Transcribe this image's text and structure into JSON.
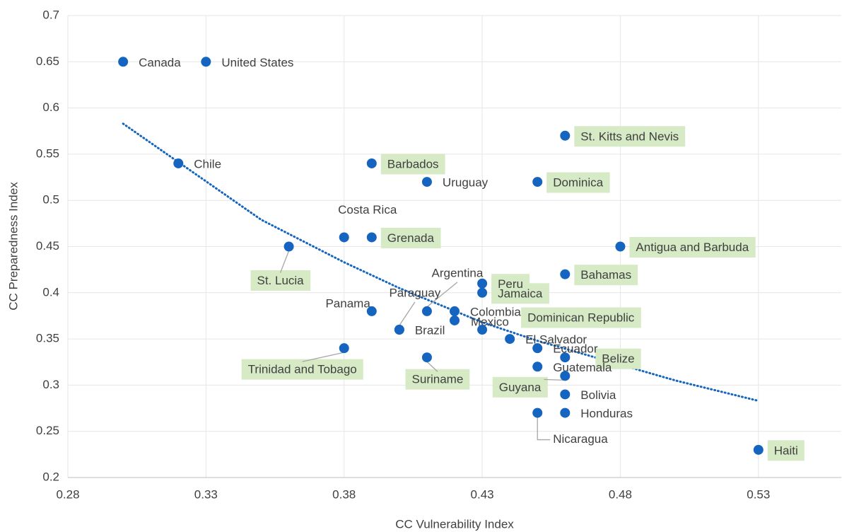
{
  "chart_data": {
    "type": "scatter",
    "x_label": "CC Vulnerability Index",
    "y_label": "CC Preparedness Index",
    "xlim": [
      0.28,
      0.56
    ],
    "ylim": [
      0.2,
      0.7
    ],
    "xticks": [
      0.28,
      0.33,
      0.38,
      0.43,
      0.48,
      0.53
    ],
    "yticks": [
      0.2,
      0.25,
      0.3,
      0.35,
      0.4,
      0.45,
      0.5,
      0.55,
      0.6,
      0.65,
      0.7
    ],
    "grid": true,
    "color": "#1565c0",
    "highlight_color": "#d6eac6",
    "labels": [
      "Canada",
      "United States",
      "Chile",
      "Barbados",
      "Uruguay",
      "Dominica",
      "St. Kitts and Nevis",
      "Costa Rica",
      "Grenada",
      "St. Lucia",
      "Antigua and Barbuda",
      "Bahamas",
      "Argentina",
      "Paraguay",
      "Panama",
      "Brazil",
      "Colombia",
      "Mexico",
      "Peru",
      "Jamaica",
      "Dominican Republic",
      "El Salvador",
      "Ecuador",
      "Belize",
      "Guatemala",
      "Guyana",
      "Bolivia",
      "Honduras",
      "Nicaragua",
      "Suriname",
      "Trinidad and Tobago",
      "Haiti"
    ],
    "x": [
      0.3,
      0.33,
      0.32,
      0.39,
      0.41,
      0.45,
      0.46,
      0.38,
      0.39,
      0.36,
      0.48,
      0.46,
      0.41,
      0.4,
      0.39,
      0.4,
      0.42,
      0.42,
      0.43,
      0.43,
      0.43,
      0.44,
      0.45,
      0.46,
      0.45,
      0.46,
      0.46,
      0.46,
      0.45,
      0.41,
      0.38,
      0.53
    ],
    "values": [
      0.65,
      0.65,
      0.54,
      0.54,
      0.52,
      0.52,
      0.57,
      0.46,
      0.46,
      0.45,
      0.45,
      0.42,
      0.38,
      0.36,
      0.38,
      0.36,
      0.38,
      0.37,
      0.41,
      0.4,
      0.36,
      0.35,
      0.34,
      0.33,
      0.32,
      0.31,
      0.29,
      0.27,
      0.27,
      0.33,
      0.34,
      0.23
    ],
    "highlighted": [
      false,
      false,
      false,
      true,
      false,
      true,
      true,
      false,
      true,
      true,
      true,
      true,
      false,
      false,
      false,
      false,
      false,
      false,
      true,
      true,
      true,
      false,
      false,
      true,
      false,
      true,
      false,
      false,
      false,
      true,
      true,
      true
    ],
    "trendline": {
      "color": "#1565c0",
      "x": [
        0.3,
        0.35,
        0.38,
        0.4,
        0.43,
        0.45,
        0.5,
        0.53
      ],
      "values": [
        0.583,
        0.479,
        0.433,
        0.405,
        0.368,
        0.348,
        0.305,
        0.283
      ]
    }
  }
}
